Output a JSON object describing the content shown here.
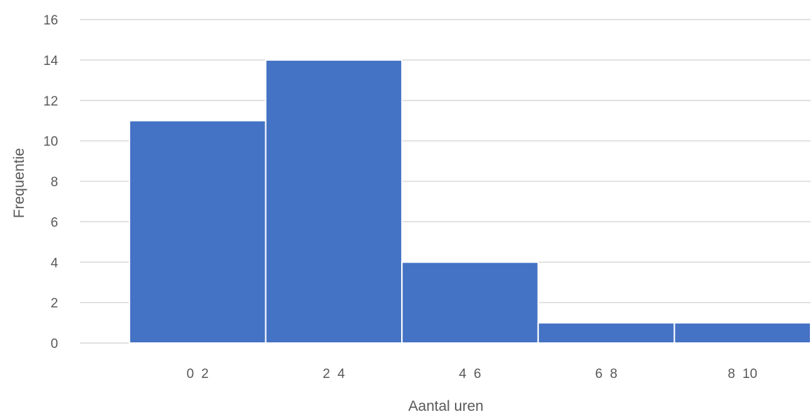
{
  "chart_data": {
    "type": "bar",
    "categories": [
      "0 2",
      "2 4",
      "4 6",
      "6 8",
      "8 10"
    ],
    "values": [
      11,
      14,
      4,
      1,
      1
    ],
    "xlabel": "Aantal uren",
    "ylabel": "Frequentie",
    "ylim": [
      0,
      16
    ],
    "yticks": [
      0,
      2,
      4,
      6,
      8,
      10,
      12,
      14,
      16
    ],
    "grid": true,
    "legend": "none",
    "bar_color": "#4472c4",
    "grid_color": "#d9d9d9",
    "text_color": "#595959"
  }
}
